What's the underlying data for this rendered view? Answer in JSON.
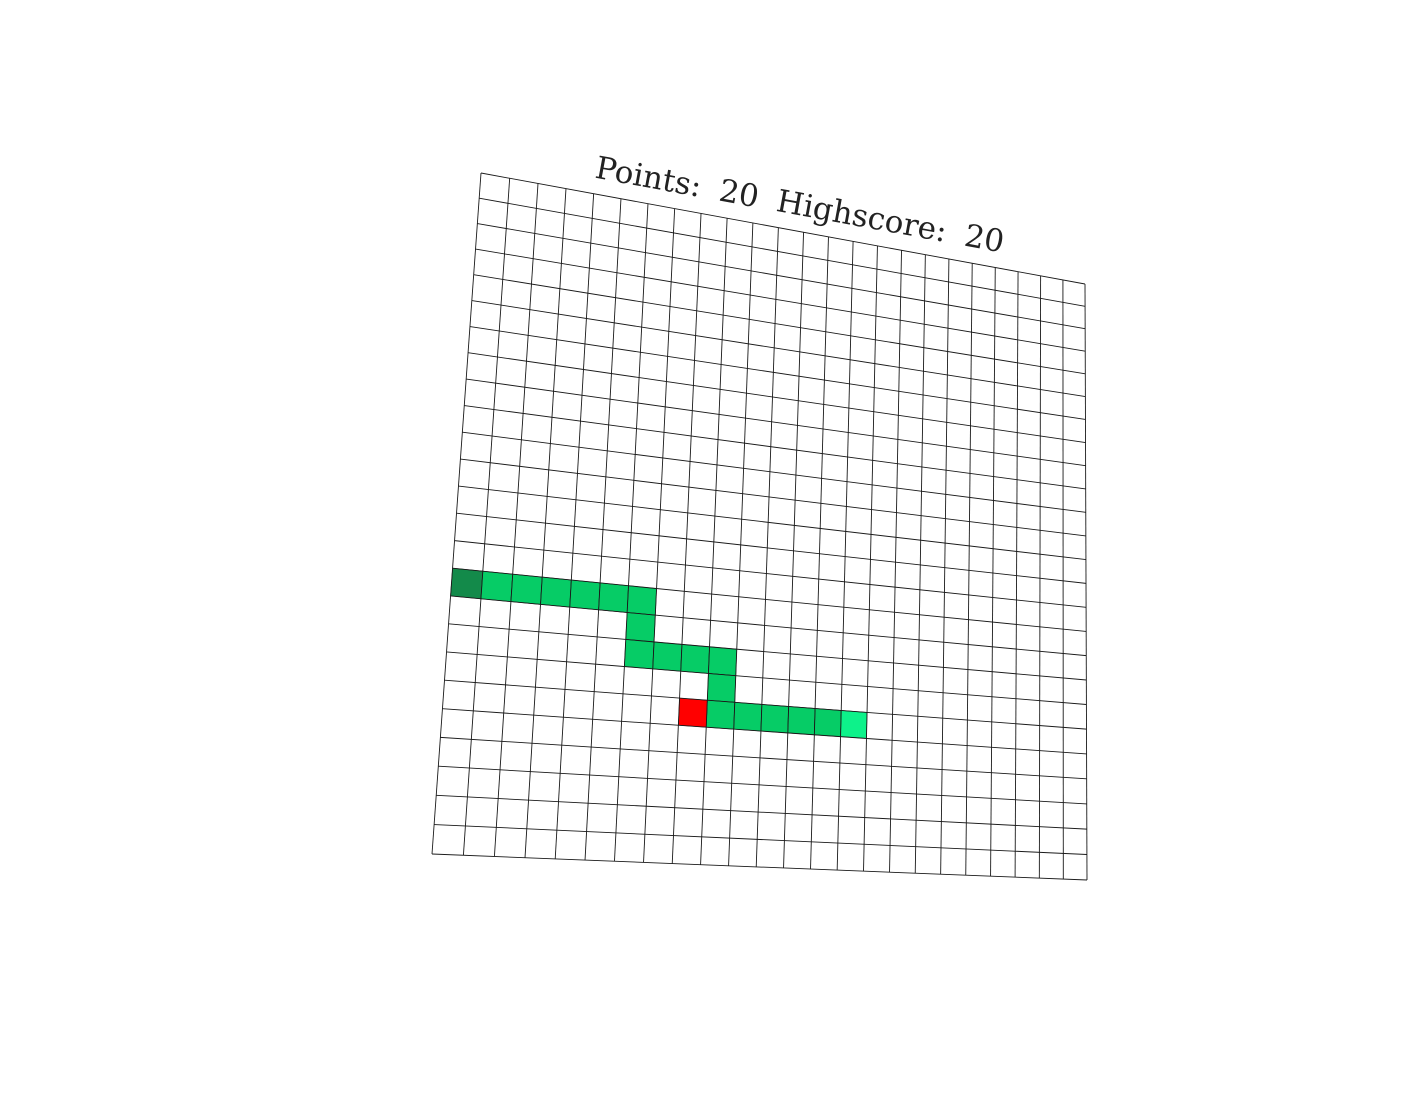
{
  "score": {
    "points_label": "Points:",
    "points": "20",
    "highscore_label": "Highscore:",
    "highscore": "20"
  },
  "board": {
    "columns": 24,
    "rows": 25,
    "line_color": "#1a1a1a",
    "background_color": "#ffffff"
  },
  "colors": {
    "snake_tail": "#138a4a",
    "snake_body": "#06cc66",
    "snake_head": "#0df28a",
    "food": "#ff0000"
  },
  "snake": {
    "cells": [
      {
        "col": 0,
        "row": 15,
        "part": "tail"
      },
      {
        "col": 1,
        "row": 15,
        "part": "body"
      },
      {
        "col": 2,
        "row": 15,
        "part": "body"
      },
      {
        "col": 3,
        "row": 15,
        "part": "body"
      },
      {
        "col": 4,
        "row": 15,
        "part": "body"
      },
      {
        "col": 5,
        "row": 15,
        "part": "body"
      },
      {
        "col": 6,
        "row": 15,
        "part": "body"
      },
      {
        "col": 6,
        "row": 16,
        "part": "body"
      },
      {
        "col": 6,
        "row": 17,
        "part": "body"
      },
      {
        "col": 7,
        "row": 17,
        "part": "body"
      },
      {
        "col": 8,
        "row": 17,
        "part": "body"
      },
      {
        "col": 9,
        "row": 17,
        "part": "body"
      },
      {
        "col": 9,
        "row": 18,
        "part": "body"
      },
      {
        "col": 9,
        "row": 19,
        "part": "body"
      },
      {
        "col": 10,
        "row": 19,
        "part": "body"
      },
      {
        "col": 11,
        "row": 19,
        "part": "body"
      },
      {
        "col": 12,
        "row": 19,
        "part": "body"
      },
      {
        "col": 13,
        "row": 19,
        "part": "body"
      },
      {
        "col": 14,
        "row": 19,
        "part": "head"
      }
    ]
  },
  "food": {
    "col": 8,
    "row": 19
  }
}
